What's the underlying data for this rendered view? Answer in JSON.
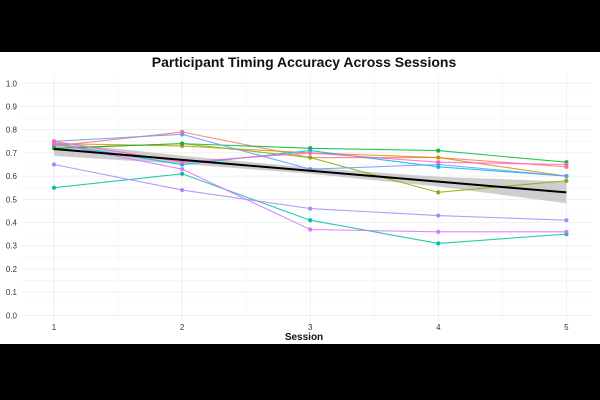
{
  "chart_data": {
    "type": "line",
    "title": "Participant Timing Accuracy Across Sessions",
    "xlabel": "Session",
    "ylabel": "",
    "x": [
      1,
      2,
      3,
      4,
      5
    ],
    "xlim": [
      0.75,
      5.2
    ],
    "ylim": [
      -0.02,
      1.04
    ],
    "yticks": [
      0.0,
      0.1,
      0.2,
      0.3,
      0.4,
      0.5,
      0.6,
      0.7,
      0.8,
      0.9,
      1.0
    ],
    "ytick_labels": [
      "0.0",
      "0.1",
      "0.2",
      "0.3",
      "0.4",
      "0.5",
      "0.6",
      "0.7",
      "0.8",
      "0.9",
      "1.0"
    ],
    "xtick_labels": [
      "1",
      "2",
      "3",
      "4",
      "5"
    ],
    "grid": true,
    "legend": "none",
    "series": [
      {
        "color": "#F8766D",
        "values": [
          0.73,
          0.79,
          0.68,
          0.68,
          0.64
        ]
      },
      {
        "color": "#D39200",
        "values": [
          0.74,
          0.73,
          0.7,
          0.68,
          0.6
        ]
      },
      {
        "color": "#93AA00",
        "values": [
          0.72,
          0.74,
          0.68,
          0.53,
          0.58
        ]
      },
      {
        "color": "#00BA38",
        "values": [
          0.72,
          0.74,
          0.72,
          0.71,
          0.66
        ]
      },
      {
        "color": "#00C19F",
        "values": [
          0.55,
          0.61,
          0.41,
          0.31,
          0.35
        ]
      },
      {
        "color": "#00B9E3",
        "values": [
          0.74,
          0.65,
          0.71,
          0.64,
          0.6
        ]
      },
      {
        "color": "#619CFF",
        "values": [
          0.75,
          0.78,
          0.63,
          0.65,
          0.6
        ]
      },
      {
        "color": "#A58AFF",
        "values": [
          0.65,
          0.54,
          0.46,
          0.43,
          0.41
        ]
      },
      {
        "color": "#DB72FB",
        "values": [
          0.74,
          0.63,
          0.37,
          0.36,
          0.36
        ]
      },
      {
        "color": "#FF61C3",
        "values": [
          0.75,
          0.66,
          0.7,
          0.66,
          0.65
        ]
      }
    ],
    "trend": {
      "color": "#000000",
      "values": [
        0.717,
        0.67,
        0.623,
        0.576,
        0.53
      ],
      "ci_lower": [
        0.687,
        0.652,
        0.61,
        0.555,
        0.483
      ],
      "ci_upper": [
        0.747,
        0.688,
        0.636,
        0.597,
        0.577
      ],
      "band_color": "#bdbdbd"
    }
  }
}
